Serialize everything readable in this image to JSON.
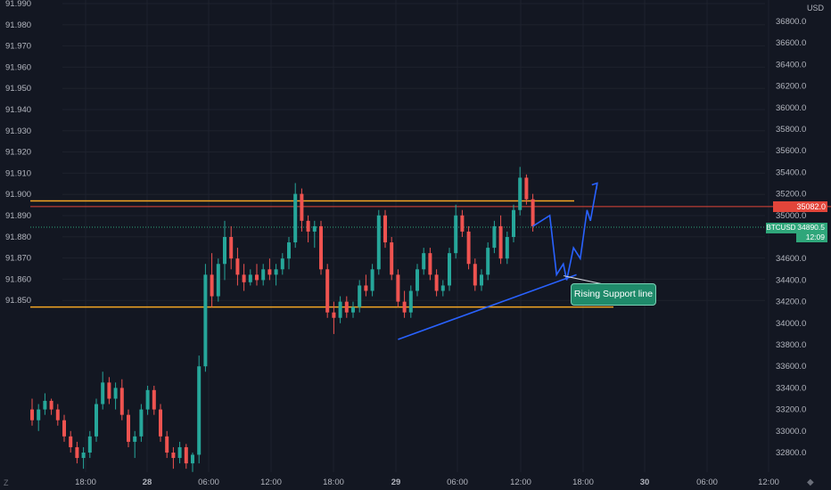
{
  "chart_data": {
    "type": "candlestick",
    "symbol": "BTCUSD",
    "currency_label": "USD",
    "left_axis": {
      "ticks": [
        "91.990",
        "91.980",
        "91.970",
        "91.960",
        "91.950",
        "91.940",
        "91.930",
        "91.920",
        "91.910",
        "91.900",
        "91.890",
        "91.880",
        "91.870",
        "91.860",
        "91.850"
      ],
      "range": [
        91.8445,
        91.9915
      ]
    },
    "right_axis": {
      "ticks": [
        "36800.0",
        "36600.0",
        "36400.0",
        "36200.0",
        "36000.0",
        "35800.0",
        "35600.0",
        "35400.0",
        "35200.0",
        "35000.0",
        "34600.0",
        "34400.0",
        "34200.0",
        "34000.0",
        "33800.0",
        "33600.0",
        "33400.0",
        "33200.0",
        "33000.0",
        "32800.0"
      ],
      "range": [
        32580,
        37000
      ]
    },
    "x_axis": {
      "ticks": [
        "18:00",
        "28",
        "06:00",
        "12:00",
        "18:00",
        "29",
        "06:00",
        "12:00",
        "18:00",
        "30",
        "06:00",
        "12:00"
      ],
      "bold_ticks": [
        "28",
        "29",
        "30"
      ]
    },
    "price_line": {
      "value": 35082.0,
      "label": "35082.0"
    },
    "last_price": {
      "value": 34890.5,
      "label": "34890.5",
      "countdown": "12:09"
    },
    "horizontal_levels": [
      35135,
      35075,
      34150
    ],
    "candles": [
      {
        "o": 33200,
        "h": 33300,
        "l": 33050,
        "c": 33100
      },
      {
        "o": 33100,
        "h": 33250,
        "l": 33000,
        "c": 33200
      },
      {
        "o": 33200,
        "h": 33350,
        "l": 33150,
        "c": 33280
      },
      {
        "o": 33280,
        "h": 33300,
        "l": 33150,
        "c": 33200
      },
      {
        "o": 33200,
        "h": 33250,
        "l": 33050,
        "c": 33100
      },
      {
        "o": 33100,
        "h": 33150,
        "l": 32900,
        "c": 32950
      },
      {
        "o": 32950,
        "h": 33000,
        "l": 32800,
        "c": 32850
      },
      {
        "o": 32850,
        "h": 32900,
        "l": 32700,
        "c": 32750
      },
      {
        "o": 32750,
        "h": 32850,
        "l": 32650,
        "c": 32800
      },
      {
        "o": 32800,
        "h": 33000,
        "l": 32750,
        "c": 32950
      },
      {
        "o": 32950,
        "h": 33300,
        "l": 32900,
        "c": 33250
      },
      {
        "o": 33250,
        "h": 33550,
        "l": 33200,
        "c": 33450
      },
      {
        "o": 33450,
        "h": 33500,
        "l": 33250,
        "c": 33300
      },
      {
        "o": 33300,
        "h": 33450,
        "l": 33200,
        "c": 33400
      },
      {
        "o": 33400,
        "h": 33480,
        "l": 33100,
        "c": 33150
      },
      {
        "o": 33150,
        "h": 33200,
        "l": 32850,
        "c": 32900
      },
      {
        "o": 32900,
        "h": 33000,
        "l": 32750,
        "c": 32950
      },
      {
        "o": 32950,
        "h": 33250,
        "l": 32900,
        "c": 33200
      },
      {
        "o": 33200,
        "h": 33420,
        "l": 33150,
        "c": 33380
      },
      {
        "o": 33380,
        "h": 33420,
        "l": 33150,
        "c": 33200
      },
      {
        "o": 33200,
        "h": 33250,
        "l": 32900,
        "c": 32950
      },
      {
        "o": 32950,
        "h": 33000,
        "l": 32750,
        "c": 32800
      },
      {
        "o": 32800,
        "h": 32850,
        "l": 32650,
        "c": 32750
      },
      {
        "o": 32750,
        "h": 32900,
        "l": 32700,
        "c": 32850
      },
      {
        "o": 32850,
        "h": 32880,
        "l": 32650,
        "c": 32700
      },
      {
        "o": 32700,
        "h": 32800,
        "l": 32620,
        "c": 32780
      },
      {
        "o": 32780,
        "h": 33700,
        "l": 32700,
        "c": 33600
      },
      {
        "o": 33600,
        "h": 34550,
        "l": 33550,
        "c": 34450
      },
      {
        "o": 34450,
        "h": 34650,
        "l": 34150,
        "c": 34250
      },
      {
        "o": 34250,
        "h": 34600,
        "l": 34200,
        "c": 34550
      },
      {
        "o": 34550,
        "h": 34950,
        "l": 34400,
        "c": 34800
      },
      {
        "o": 34800,
        "h": 34900,
        "l": 34500,
        "c": 34600
      },
      {
        "o": 34600,
        "h": 34700,
        "l": 34350,
        "c": 34450
      },
      {
        "o": 34450,
        "h": 34550,
        "l": 34300,
        "c": 34380
      },
      {
        "o": 34380,
        "h": 34500,
        "l": 34350,
        "c": 34450
      },
      {
        "o": 34450,
        "h": 34550,
        "l": 34350,
        "c": 34400
      },
      {
        "o": 34400,
        "h": 34550,
        "l": 34350,
        "c": 34500
      },
      {
        "o": 34500,
        "h": 34600,
        "l": 34400,
        "c": 34450
      },
      {
        "o": 34450,
        "h": 34550,
        "l": 34350,
        "c": 34500
      },
      {
        "o": 34500,
        "h": 34650,
        "l": 34450,
        "c": 34600
      },
      {
        "o": 34600,
        "h": 34800,
        "l": 34500,
        "c": 34750
      },
      {
        "o": 34750,
        "h": 35300,
        "l": 34700,
        "c": 35200
      },
      {
        "o": 35200,
        "h": 35250,
        "l": 34850,
        "c": 34950
      },
      {
        "o": 34950,
        "h": 35000,
        "l": 34750,
        "c": 34850
      },
      {
        "o": 34850,
        "h": 34950,
        "l": 34700,
        "c": 34900
      },
      {
        "o": 34900,
        "h": 34950,
        "l": 34450,
        "c": 34500
      },
      {
        "o": 34500,
        "h": 34550,
        "l": 34050,
        "c": 34100
      },
      {
        "o": 34100,
        "h": 34200,
        "l": 33900,
        "c": 34050
      },
      {
        "o": 34050,
        "h": 34250,
        "l": 34000,
        "c": 34200
      },
      {
        "o": 34200,
        "h": 34250,
        "l": 34050,
        "c": 34100
      },
      {
        "o": 34100,
        "h": 34200,
        "l": 34050,
        "c": 34150
      },
      {
        "o": 34150,
        "h": 34400,
        "l": 34100,
        "c": 34350
      },
      {
        "o": 34350,
        "h": 34450,
        "l": 34250,
        "c": 34300
      },
      {
        "o": 34300,
        "h": 34550,
        "l": 34250,
        "c": 34500
      },
      {
        "o": 34500,
        "h": 35050,
        "l": 34450,
        "c": 35000
      },
      {
        "o": 35000,
        "h": 35050,
        "l": 34700,
        "c": 34750
      },
      {
        "o": 34750,
        "h": 34800,
        "l": 34400,
        "c": 34450
      },
      {
        "o": 34450,
        "h": 34500,
        "l": 34150,
        "c": 34200
      },
      {
        "o": 34200,
        "h": 34300,
        "l": 34050,
        "c": 34100
      },
      {
        "o": 34100,
        "h": 34350,
        "l": 34050,
        "c": 34300
      },
      {
        "o": 34300,
        "h": 34550,
        "l": 34250,
        "c": 34500
      },
      {
        "o": 34500,
        "h": 34700,
        "l": 34450,
        "c": 34650
      },
      {
        "o": 34650,
        "h": 34700,
        "l": 34400,
        "c": 34450
      },
      {
        "o": 34450,
        "h": 34500,
        "l": 34250,
        "c": 34300
      },
      {
        "o": 34300,
        "h": 34400,
        "l": 34250,
        "c": 34350
      },
      {
        "o": 34350,
        "h": 34700,
        "l": 34300,
        "c": 34650
      },
      {
        "o": 34650,
        "h": 35100,
        "l": 34600,
        "c": 35000
      },
      {
        "o": 35000,
        "h": 35050,
        "l": 34800,
        "c": 34850
      },
      {
        "o": 34850,
        "h": 34900,
        "l": 34500,
        "c": 34550
      },
      {
        "o": 34550,
        "h": 34600,
        "l": 34300,
        "c": 34350
      },
      {
        "o": 34350,
        "h": 34500,
        "l": 34300,
        "c": 34450
      },
      {
        "o": 34450,
        "h": 34750,
        "l": 34400,
        "c": 34700
      },
      {
        "o": 34700,
        "h": 34950,
        "l": 34650,
        "c": 34900
      },
      {
        "o": 34900,
        "h": 35000,
        "l": 34550,
        "c": 34600
      },
      {
        "o": 34600,
        "h": 34850,
        "l": 34550,
        "c": 34800
      },
      {
        "o": 34800,
        "h": 35100,
        "l": 34750,
        "c": 35050
      },
      {
        "o": 35050,
        "h": 35450,
        "l": 35000,
        "c": 35350
      },
      {
        "o": 35350,
        "h": 35380,
        "l": 35100,
        "c": 35150
      },
      {
        "o": 35150,
        "h": 35200,
        "l": 34850,
        "c": 34900
      }
    ],
    "projection_path": [
      [
        0,
        34900
      ],
      [
        5,
        35000
      ],
      [
        7,
        34450
      ],
      [
        9,
        34550
      ],
      [
        10,
        34400
      ],
      [
        12,
        34700
      ],
      [
        14,
        34600
      ],
      [
        16,
        35050
      ],
      [
        17,
        34950
      ],
      [
        19,
        35300
      ]
    ],
    "support_line": {
      "from": [
        38,
        33850
      ],
      "to": [
        106,
        34450
      ]
    },
    "annotation": "Rising Support line"
  }
}
